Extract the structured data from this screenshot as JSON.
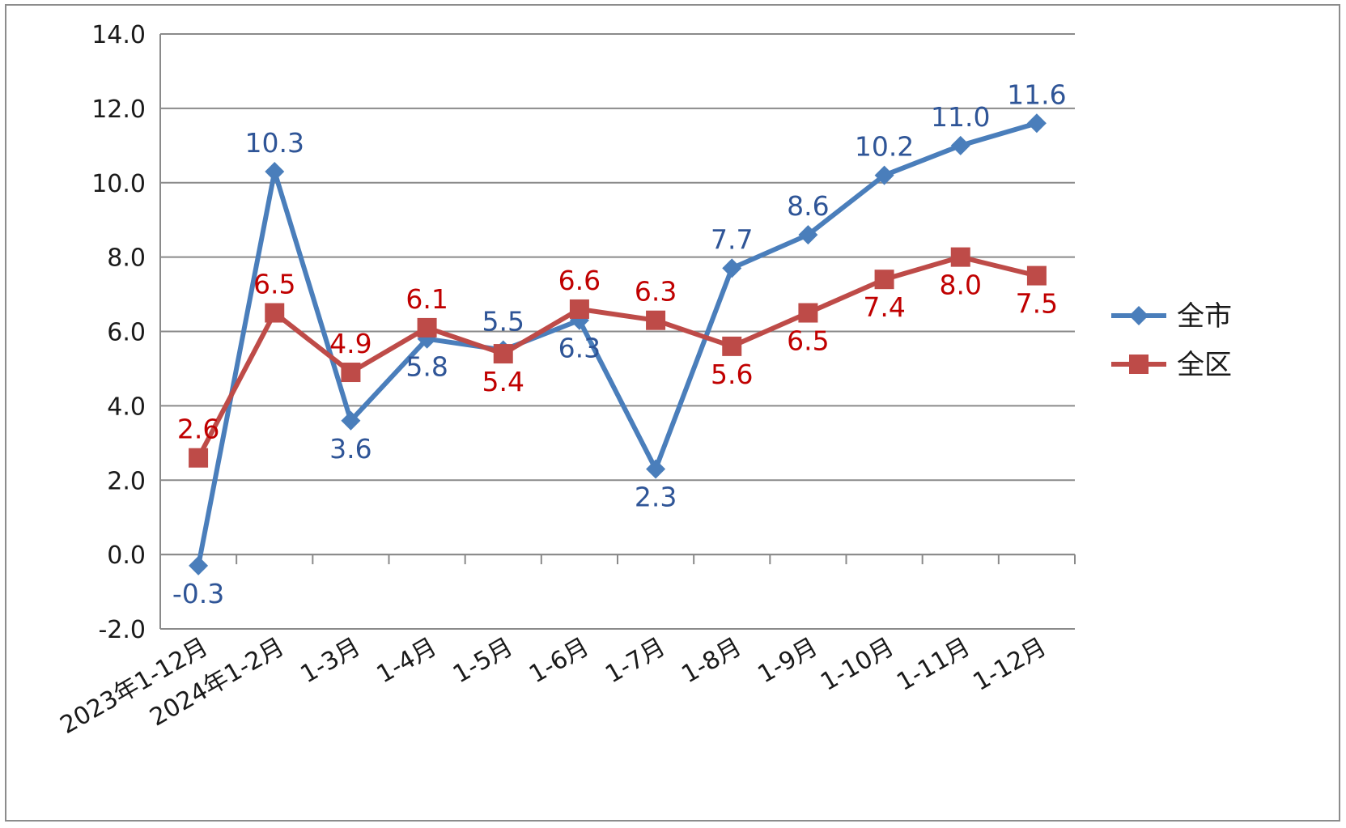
{
  "chart_data": {
    "type": "line",
    "title": "",
    "xlabel": "",
    "ylabel": "",
    "categories": [
      "2023年1-12月",
      "2024年1-2月",
      "1-3月",
      "1-4月",
      "1-5月",
      "1-6月",
      "1-7月",
      "1-8月",
      "1-9月",
      "1-10月",
      "1-11月",
      "1-12月"
    ],
    "ylim": [
      -2.0,
      14.0
    ],
    "yticks": [
      "14.0",
      "12.0",
      "10.0",
      "8.0",
      "6.0",
      "4.0",
      "2.0",
      "0.0",
      "-2.0"
    ],
    "grid": true,
    "legend_position": "right",
    "series": [
      {
        "name": "全市",
        "color": "#4a7ebb",
        "marker": "diamond",
        "values": [
          -0.3,
          10.3,
          3.6,
          5.8,
          5.5,
          6.3,
          2.3,
          7.7,
          8.6,
          10.2,
          11.0,
          11.6
        ],
        "labels": [
          "-0.3",
          "10.3",
          "3.6",
          "5.8",
          "5.5",
          "6.3",
          "2.3",
          "7.7",
          "8.6",
          "10.2",
          "11.0",
          "11.6"
        ],
        "label_color": "#2f5597"
      },
      {
        "name": "全区",
        "color": "#be4b48",
        "marker": "square",
        "values": [
          2.6,
          6.5,
          4.9,
          6.1,
          5.4,
          6.6,
          6.3,
          5.6,
          6.5,
          7.4,
          8.0,
          7.5
        ],
        "labels": [
          "2.6",
          "6.5",
          "4.9",
          "6.1",
          "5.4",
          "6.6",
          "6.3",
          "5.6",
          "6.5",
          "7.4",
          "8.0",
          "7.5"
        ],
        "label_color": "#c00000"
      }
    ]
  }
}
